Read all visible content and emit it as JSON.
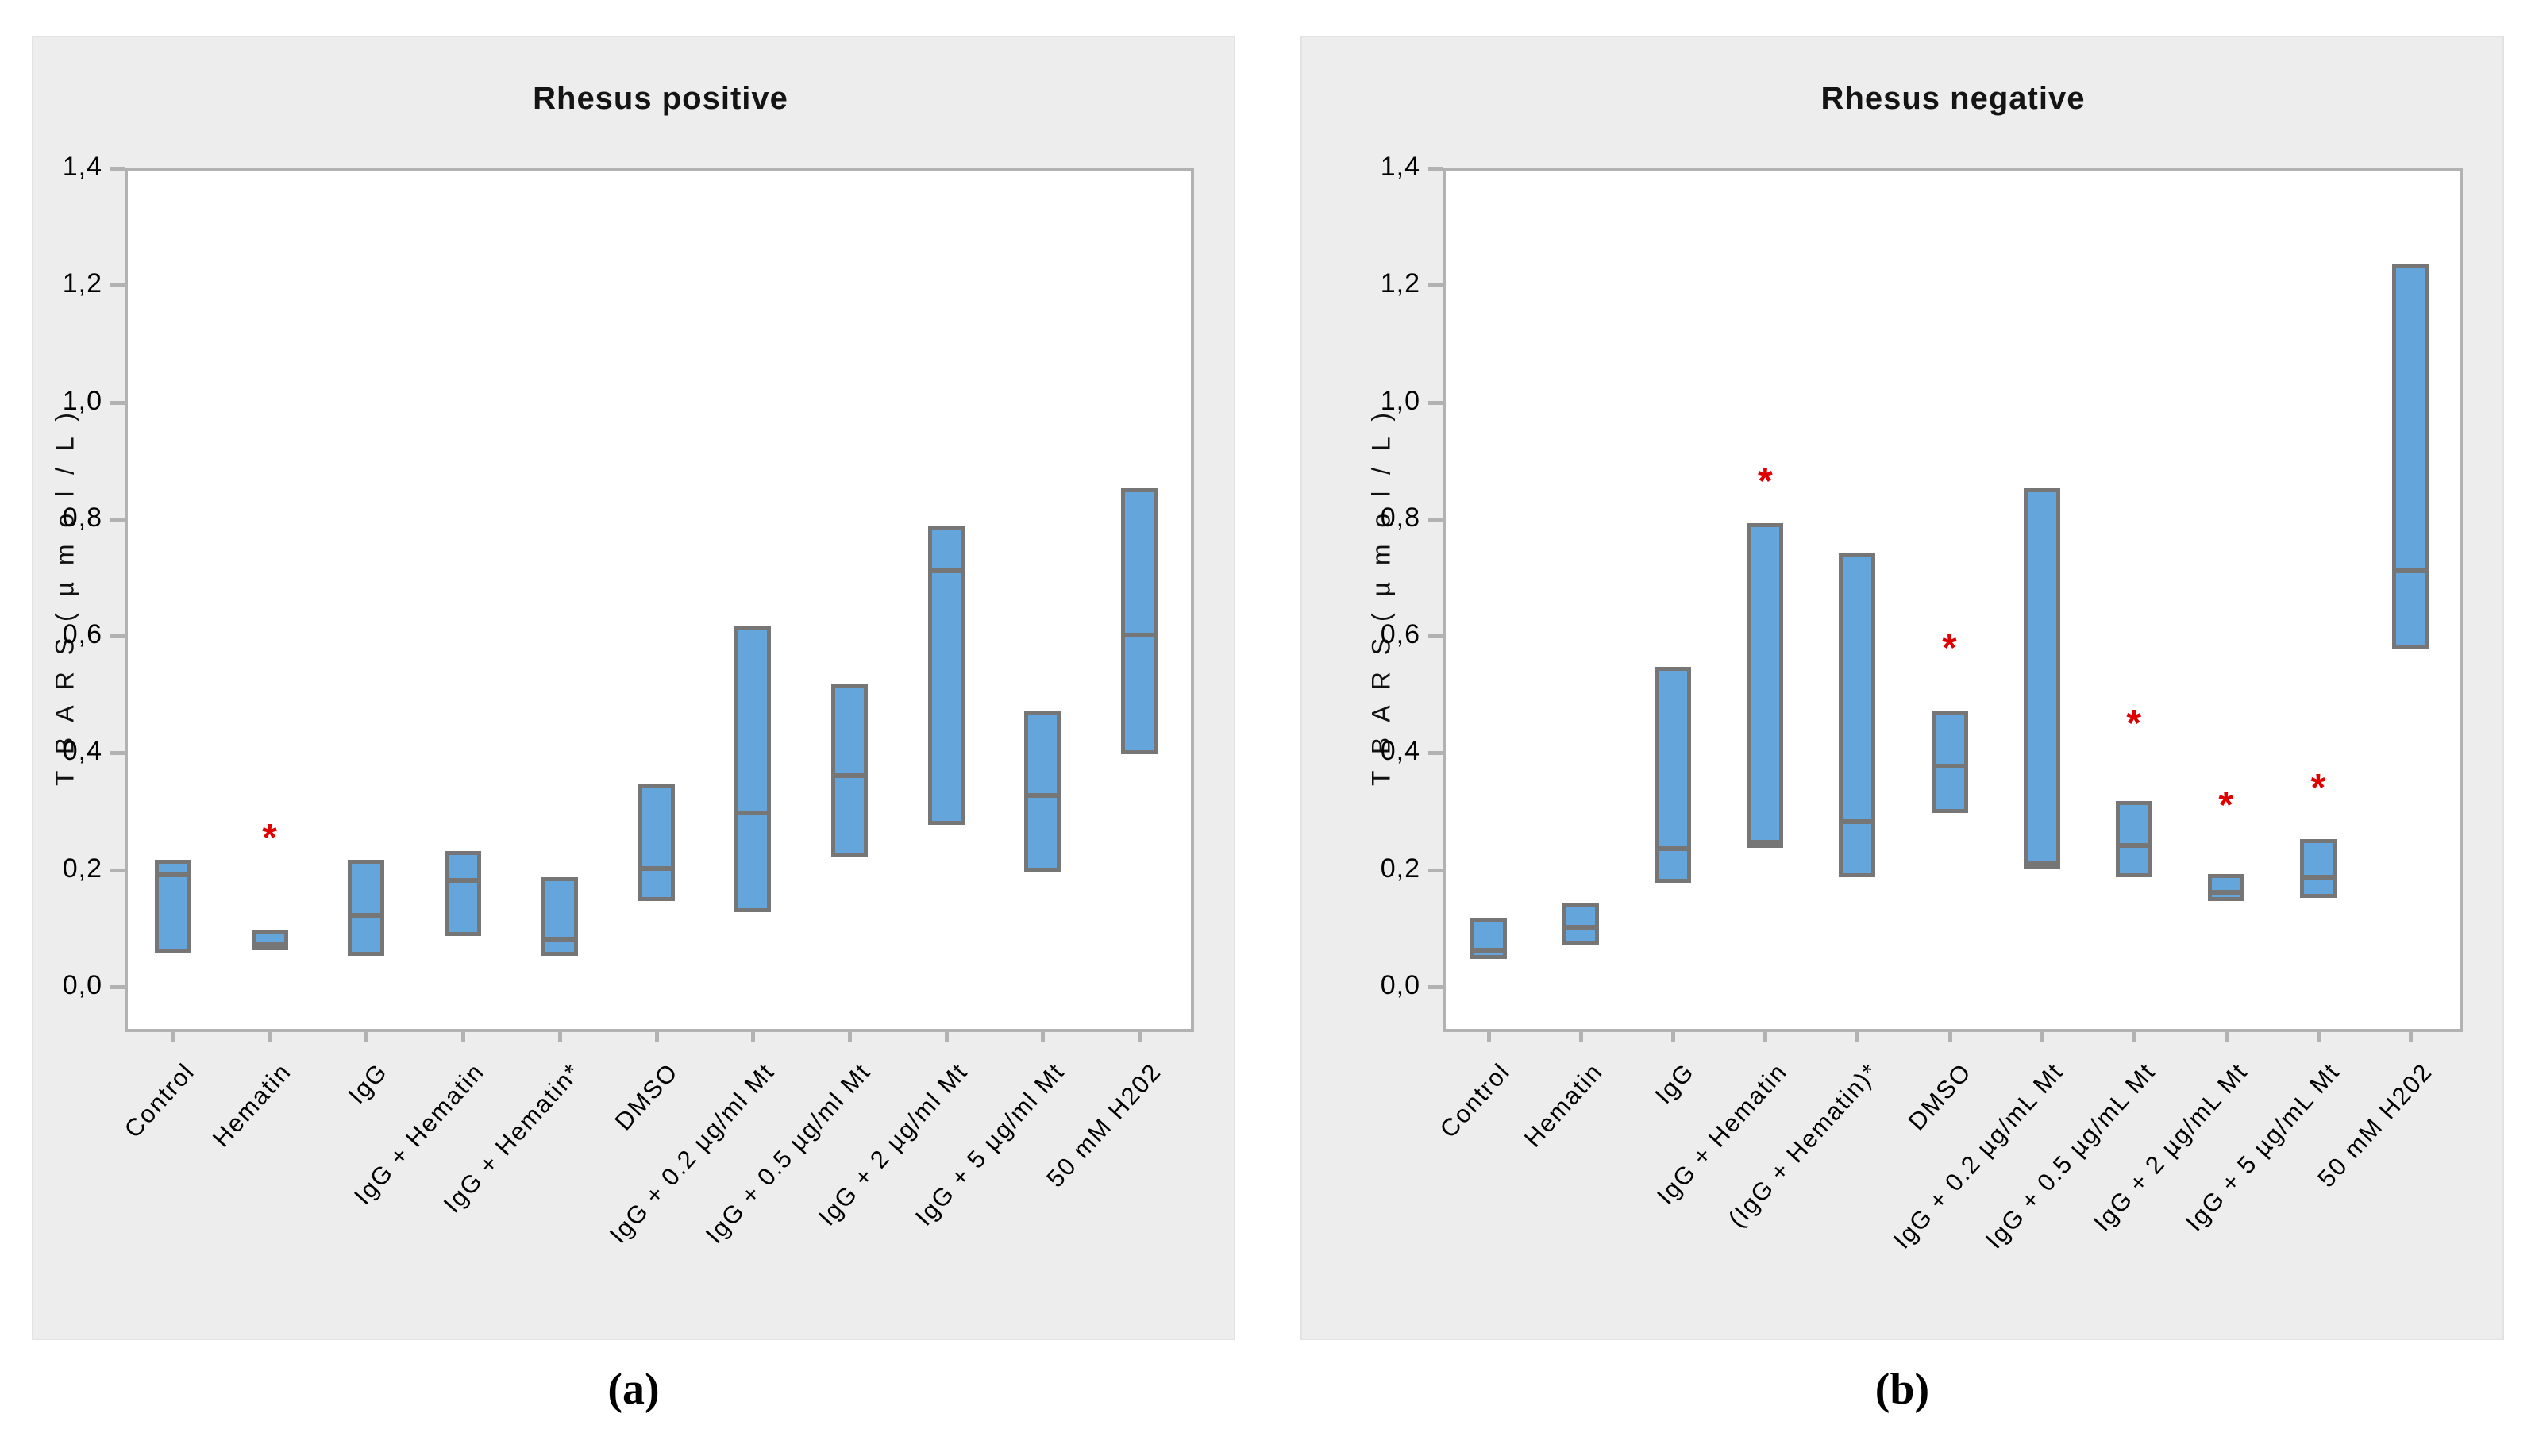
{
  "figure": {
    "y_axis_title": "T B A R S  ( µ m o l / L )",
    "captions": {
      "a": "(a)",
      "b": "(b)"
    }
  },
  "colors": {
    "panel_background": "#ededed",
    "plot_background": "#ffffff",
    "frame_gray": "#b2b2b2",
    "box_fill_blue": "#64a5db",
    "box_border_gray": "#767676",
    "asterisk_red": "#e00000",
    "text_black": "#000000"
  },
  "chart_data": [
    {
      "type": "box",
      "title": "Rhesus positive",
      "caption": "(a)",
      "xlabel": "",
      "ylabel": "T B A R S  ( µ m o l / L )",
      "ylim": [
        0,
        1.4
      ],
      "ytick_step": 0.2,
      "ytick_labels": [
        "0,0",
        "0,2",
        "0,4",
        "0,6",
        "0,8",
        "1,0",
        "1,2",
        "1,4"
      ],
      "grid": false,
      "legend": "none",
      "plot_left_inset": 115,
      "categories": [
        "Control",
        "Hematin",
        "IgG",
        "IgG + Hematin",
        "IgG + Hematin*",
        "DMSO",
        "IgG + 0.2 µg/ml Mt",
        "IgG + 0.5 µg/ml Mt",
        "IgG + 2 µg/ml Mt",
        "IgG + 5 µg/ml Mt",
        "50 mM H202"
      ],
      "boxes": [
        {
          "category": "Control",
          "min": 0.06,
          "median": 0.2,
          "max": 0.215
        },
        {
          "category": "Hematin",
          "min": 0.065,
          "median": 0.08,
          "max": 0.095,
          "asterisk": 0.265
        },
        {
          "category": "IgG",
          "min": 0.055,
          "median": 0.13,
          "max": 0.215
        },
        {
          "category": "IgG + Hematin",
          "min": 0.09,
          "median": 0.19,
          "max": 0.23
        },
        {
          "category": "IgG + Hematin*",
          "min": 0.055,
          "median": 0.09,
          "max": 0.185
        },
        {
          "category": "DMSO",
          "min": 0.15,
          "median": 0.21,
          "max": 0.345
        },
        {
          "category": "IgG + 0.2 µg/ml Mt",
          "min": 0.13,
          "median": 0.305,
          "max": 0.615
        },
        {
          "category": "IgG + 0.5 µg/ml Mt",
          "min": 0.225,
          "median": 0.37,
          "max": 0.515
        },
        {
          "category": "IgG + 2 µg/ml Mt",
          "min": 0.28,
          "median": 0.72,
          "max": 0.785
        },
        {
          "category": "IgG + 5 µg/ml Mt",
          "min": 0.2,
          "median": 0.335,
          "max": 0.47
        },
        {
          "category": "50 mM H202",
          "min": 0.4,
          "median": 0.61,
          "max": 0.85
        }
      ]
    },
    {
      "type": "box",
      "title": "Rhesus negative",
      "caption": "(b)",
      "xlabel": "",
      "ylabel": "T B A R S  ( µ m o l / L )",
      "ylim": [
        0,
        1.4
      ],
      "ytick_step": 0.2,
      "ytick_labels": [
        "0,0",
        "0,2",
        "0,4",
        "0,6",
        "0,8",
        "1,0",
        "1,2",
        "1,4"
      ],
      "grid": false,
      "legend": "none",
      "plot_left_inset": 177,
      "categories": [
        "Control",
        "Hematin",
        "IgG",
        "IgG + Hematin",
        "(IgG + Hematin)*",
        "DMSO",
        "IgG + 0.2 µg/mL Mt",
        "IgG + 0.5 µg/mL Mt",
        "IgG + 2 µg/mL Mt",
        "IgG + 5 µg/mL Mt",
        "50 mM H202"
      ],
      "boxes": [
        {
          "category": "Control",
          "min": 0.05,
          "median": 0.07,
          "max": 0.115
        },
        {
          "category": "Hematin",
          "min": 0.075,
          "median": 0.11,
          "max": 0.14
        },
        {
          "category": "IgG",
          "min": 0.18,
          "median": 0.245,
          "max": 0.545
        },
        {
          "category": "IgG + Hematin",
          "min": 0.24,
          "median": 0.255,
          "max": 0.79,
          "asterisk": 0.875
        },
        {
          "category": "(IgG + Hematin)*",
          "min": 0.19,
          "median": 0.29,
          "max": 0.74
        },
        {
          "category": "DMSO",
          "min": 0.3,
          "median": 0.385,
          "max": 0.47,
          "asterisk": 0.59
        },
        {
          "category": "IgG + 0.2 µg/mL Mt",
          "min": 0.205,
          "median": 0.22,
          "max": 0.85
        },
        {
          "category": "IgG + 0.5 µg/mL Mt",
          "min": 0.19,
          "median": 0.25,
          "max": 0.315,
          "asterisk": 0.46
        },
        {
          "category": "IgG + 2 µg/mL Mt",
          "min": 0.15,
          "median": 0.17,
          "max": 0.19,
          "asterisk": 0.32
        },
        {
          "category": "IgG + 5 µg/mL Mt",
          "min": 0.155,
          "median": 0.195,
          "max": 0.25,
          "asterisk": 0.35
        },
        {
          "category": "50 mM H202",
          "min": 0.58,
          "median": 0.72,
          "max": 1.235
        }
      ]
    }
  ]
}
